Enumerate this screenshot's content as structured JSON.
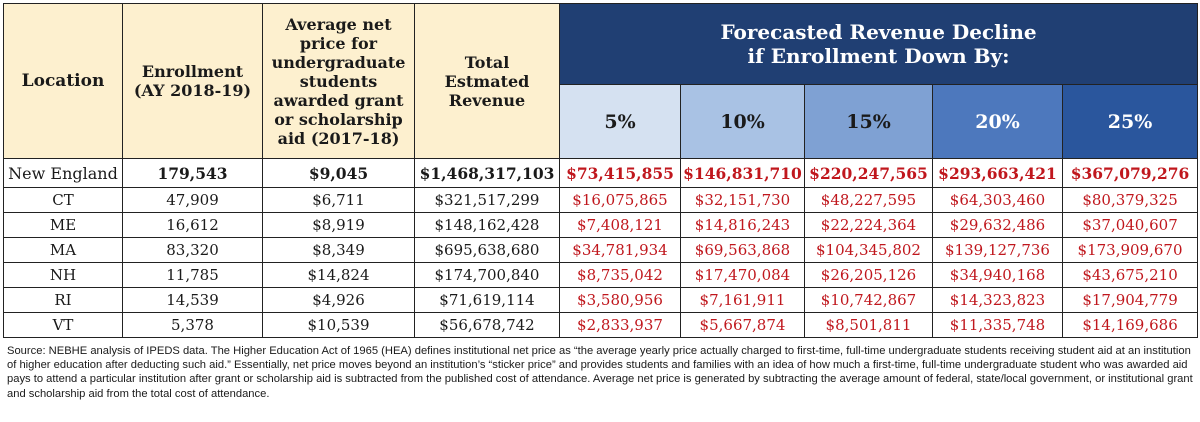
{
  "headers": {
    "location": "Location",
    "enrollment": "Enrollment (AY 2018-19)",
    "net_price": "Average net price for undergraduate students awarded grant or scholarship aid (2017-18)",
    "total_revenue": "Total Estmated Revenue",
    "forecast_title": "Forecasted Revenue Decline if Enrollment Down By:",
    "percents": [
      "5%",
      "10%",
      "15%",
      "20%",
      "25%"
    ]
  },
  "rows": [
    {
      "location": "New England",
      "enrollment": "179,543",
      "net_price": "$9,045",
      "total": "$1,468,317,103",
      "declines": [
        "$73,415,855",
        "$146,831,710",
        "$220,247,565",
        "$293,663,421",
        "$367,079,276"
      ]
    },
    {
      "location": "CT",
      "enrollment": "47,909",
      "net_price": "$6,711",
      "total": "$321,517,299",
      "declines": [
        "$16,075,865",
        "$32,151,730",
        "$48,227,595",
        "$64,303,460",
        "$80,379,325"
      ]
    },
    {
      "location": "ME",
      "enrollment": "16,612",
      "net_price": "$8,919",
      "total": "$148,162,428",
      "declines": [
        "$7,408,121",
        "$14,816,243",
        "$22,224,364",
        "$29,632,486",
        "$37,040,607"
      ]
    },
    {
      "location": "MA",
      "enrollment": "83,320",
      "net_price": "$8,349",
      "total": "$695,638,680",
      "declines": [
        "$34,781,934",
        "$69,563,868",
        "$104,345,802",
        "$139,127,736",
        "$173,909,670"
      ]
    },
    {
      "location": "NH",
      "enrollment": "11,785",
      "net_price": "$14,824",
      "total": "$174,700,840",
      "declines": [
        "$8,735,042",
        "$17,470,084",
        "$26,205,126",
        "$34,940,168",
        "$43,675,210"
      ]
    },
    {
      "location": "RI",
      "enrollment": "14,539",
      "net_price": "$4,926",
      "total": "$71,619,114",
      "declines": [
        "$3,580,956",
        "$7,161,911",
        "$10,742,867",
        "$14,323,823",
        "$17,904,779"
      ]
    },
    {
      "location": "VT",
      "enrollment": "5,378",
      "net_price": "$10,539",
      "total": "$56,678,742",
      "declines": [
        "$2,833,937",
        "$5,667,874",
        "$8,501,811",
        "$11,335,748",
        "$14,169,686"
      ]
    }
  ],
  "source_note": "Source: NEBHE analysis of IPEDS data. The Higher Education Act of 1965 (HEA) defines institutional net price as “the average yearly price actually charged to first-time, full-time undergraduate students receiving student aid at an institution of higher education after deducting such aid.” Essentially, net price moves beyond an institution’s “sticker price” and provides students and families with an idea of how much a first-time, full-time undergraduate student who was awarded aid pays to attend a particular institution after grant or scholarship aid is subtracted from the published cost of attendance. Average net price is generated by subtracting the average amount of federal, state/local government, or institutional grant and scholarship aid from the total cost of attendance.",
  "colors": {
    "header_left_bg": "#fdf0cf",
    "forecast_bg": "#203f73",
    "p5_bg": "#d5e1f1",
    "p10_bg": "#a9c2e4",
    "p15_bg": "#7fa1d3",
    "p20_bg": "#4d78bd",
    "p25_bg": "#2a569d",
    "decline_text": "#c0171d"
  }
}
